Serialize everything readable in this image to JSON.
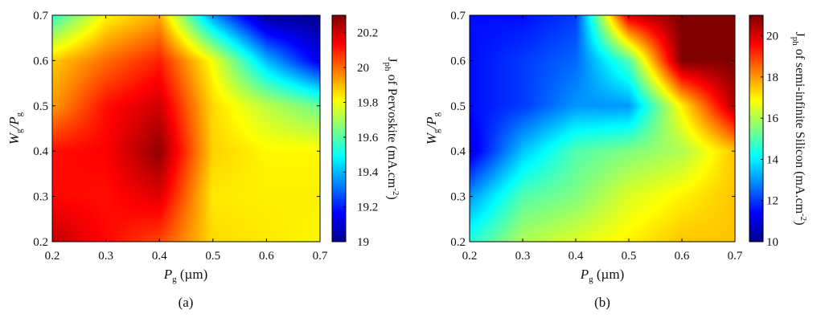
{
  "colormap": [
    "#00008f",
    "#0000ff",
    "#0080ff",
    "#00ffff",
    "#80ff80",
    "#ffff00",
    "#ff8000",
    "#ff0000",
    "#800000"
  ],
  "chart_data": [
    {
      "type": "heatmap",
      "panel_label": "(a)",
      "xlabel": {
        "main": "P",
        "sub": "g",
        "unit": " (µm)"
      },
      "ylabel": {
        "main1": "W",
        "sub1": "g",
        "mid": "/P",
        "sub2": "g"
      },
      "colorbar_label": {
        "pre": "J",
        "sub": "ph",
        "post": " of Pervoskite (mA.cm",
        "sup": "-2",
        "end": ")"
      },
      "x": [
        0.2,
        0.3,
        0.4,
        0.5,
        0.6,
        0.7
      ],
      "y": [
        0.2,
        0.3,
        0.4,
        0.5,
        0.6,
        0.7
      ],
      "xlim": [
        0.2,
        0.7
      ],
      "ylim": [
        0.2,
        0.7
      ],
      "xticks": [
        "0.2",
        "0.3",
        "0.4",
        "0.5",
        "0.6",
        "0.7"
      ],
      "yticks": [
        "0.2",
        "0.3",
        "0.4",
        "0.5",
        "0.6",
        "0.7"
      ],
      "clim": [
        19.0,
        20.3
      ],
      "cticks": [
        "19",
        "19.2",
        "19.4",
        "19.6",
        "19.8",
        "20",
        "20.2"
      ],
      "cticks_values": [
        19.0,
        19.2,
        19.4,
        19.6,
        19.8,
        20.0,
        20.2
      ],
      "z": [
        [
          20.22,
          20.13,
          20.05,
          19.86,
          19.84,
          19.82
        ],
        [
          20.13,
          20.12,
          20.18,
          19.84,
          19.83,
          19.83
        ],
        [
          20.12,
          20.14,
          20.28,
          19.87,
          19.82,
          19.82
        ],
        [
          19.94,
          20.12,
          20.2,
          19.86,
          19.73,
          19.62
        ],
        [
          19.88,
          20.0,
          20.1,
          19.8,
          19.4,
          19.13
        ],
        [
          19.55,
          19.82,
          19.92,
          19.35,
          19.02,
          19.0
        ]
      ]
    },
    {
      "type": "heatmap",
      "panel_label": "(b)",
      "xlabel": {
        "main": "P",
        "sub": "g",
        "unit": " (µm)"
      },
      "ylabel": {
        "main1": "W",
        "sub1": "g",
        "mid": "/P",
        "sub2": "g"
      },
      "colorbar_label": {
        "pre": "J",
        "sub": "ph",
        "post": " of semi-infinite Silicon (mA.cm",
        "sup": "-2",
        "end": ")"
      },
      "x": [
        0.2,
        0.3,
        0.4,
        0.5,
        0.6,
        0.7
      ],
      "y": [
        0.2,
        0.3,
        0.4,
        0.5,
        0.6,
        0.7
      ],
      "xlim": [
        0.2,
        0.7
      ],
      "ylim": [
        0.2,
        0.7
      ],
      "xticks": [
        "0.2",
        "0.3",
        "0.4",
        "0.5",
        "0.6",
        "0.7"
      ],
      "yticks": [
        "0.2",
        "0.3",
        "0.4",
        "0.5",
        "0.6",
        "0.7"
      ],
      "clim": [
        10,
        21
      ],
      "cticks": [
        "10",
        "12",
        "14",
        "16",
        "18",
        "20"
      ],
      "cticks_values": [
        10,
        12,
        14,
        16,
        18,
        20
      ],
      "z": [
        [
          14.5,
          16.0,
          16.5,
          17.0,
          17.5,
          17.5
        ],
        [
          13.0,
          15.0,
          15.5,
          16.5,
          17.0,
          17.5
        ],
        [
          11.0,
          13.5,
          15.0,
          15.5,
          16.0,
          17.5
        ],
        [
          11.5,
          12.0,
          13.0,
          13.0,
          17.0,
          20.5
        ],
        [
          11.5,
          12.0,
          12.5,
          15.0,
          21.0,
          21.0
        ],
        [
          11.5,
          11.5,
          12.0,
          20.0,
          21.0,
          21.0
        ]
      ]
    }
  ]
}
